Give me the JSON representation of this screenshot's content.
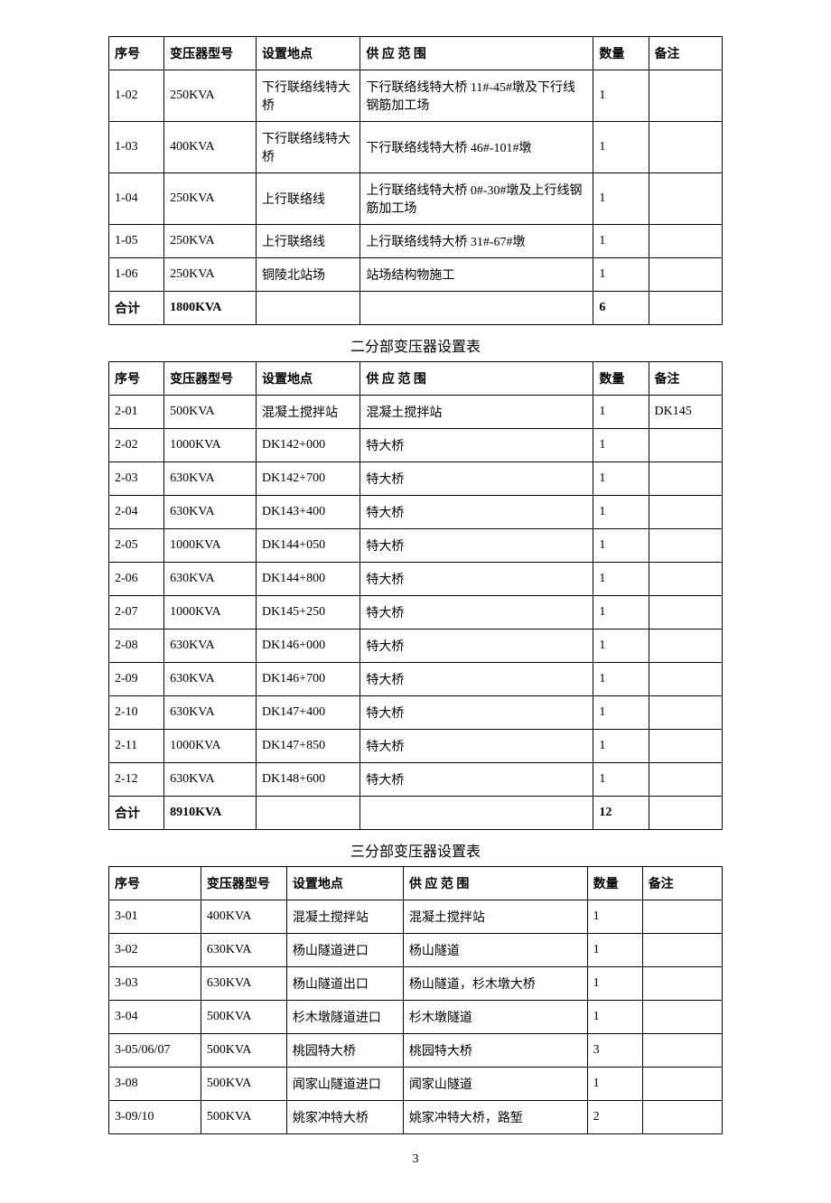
{
  "headers": {
    "seq": "序号",
    "model": "变压器型号",
    "location": "设置地点",
    "scope": "供 应 范 围",
    "qty": "数量",
    "remark": "备注"
  },
  "table1": {
    "rows": [
      {
        "seq": "1-02",
        "model": "250KVA",
        "location": "下行联络线特大桥",
        "scope": "下行联络线特大桥 11#-45#墩及下行线钢筋加工场",
        "qty": "1",
        "remark": ""
      },
      {
        "seq": "1-03",
        "model": "400KVA",
        "location": "下行联络线特大桥",
        "scope": "下行联络线特大桥 46#-101#墩",
        "qty": "1",
        "remark": ""
      },
      {
        "seq": "1-04",
        "model": "250KVA",
        "location": "上行联络线",
        "scope": "上行联络线特大桥 0#-30#墩及上行线钢筋加工场",
        "qty": "1",
        "remark": ""
      },
      {
        "seq": "1-05",
        "model": "250KVA",
        "location": "上行联络线",
        "scope": "上行联络线特大桥 31#-67#墩",
        "qty": "1",
        "remark": ""
      },
      {
        "seq": "1-06",
        "model": "250KVA",
        "location": "铜陵北站场",
        "scope": "站场结构物施工",
        "qty": "1",
        "remark": ""
      }
    ],
    "total": {
      "seq": "合计",
      "model": "1800KVA",
      "location": "",
      "scope": "",
      "qty": "6",
      "remark": ""
    }
  },
  "table2": {
    "title": "二分部变压器设置表",
    "rows": [
      {
        "seq": "2-01",
        "model": "500KVA",
        "location": "混凝土搅拌站",
        "scope": "混凝土搅拌站",
        "qty": "1",
        "remark": "DK145"
      },
      {
        "seq": "2-02",
        "model": "1000KVA",
        "location": "DK142+000",
        "scope": "特大桥",
        "qty": "1",
        "remark": ""
      },
      {
        "seq": "2-03",
        "model": "630KVA",
        "location": "DK142+700",
        "scope": "特大桥",
        "qty": "1",
        "remark": ""
      },
      {
        "seq": "2-04",
        "model": "630KVA",
        "location": "DK143+400",
        "scope": "特大桥",
        "qty": "1",
        "remark": ""
      },
      {
        "seq": "2-05",
        "model": "1000KVA",
        "location": "DK144+050",
        "scope": "特大桥",
        "qty": "1",
        "remark": ""
      },
      {
        "seq": "2-06",
        "model": "630KVA",
        "location": "DK144+800",
        "scope": "特大桥",
        "qty": "1",
        "remark": ""
      },
      {
        "seq": "2-07",
        "model": "1000KVA",
        "location": "DK145+250",
        "scope": "特大桥",
        "qty": "1",
        "remark": ""
      },
      {
        "seq": "2-08",
        "model": "630KVA",
        "location": "DK146+000",
        "scope": "特大桥",
        "qty": "1",
        "remark": ""
      },
      {
        "seq": "2-09",
        "model": "630KVA",
        "location": "DK146+700",
        "scope": "特大桥",
        "qty": "1",
        "remark": ""
      },
      {
        "seq": "2-10",
        "model": "630KVA",
        "location": "DK147+400",
        "scope": "特大桥",
        "qty": "1",
        "remark": ""
      },
      {
        "seq": "2-11",
        "model": "1000KVA",
        "location": "DK147+850",
        "scope": "特大桥",
        "qty": "1",
        "remark": ""
      },
      {
        "seq": "2-12",
        "model": "630KVA",
        "location": "DK148+600",
        "scope": "特大桥",
        "qty": "1",
        "remark": ""
      }
    ],
    "total": {
      "seq": "合计",
      "model": "8910KVA",
      "location": "",
      "scope": "",
      "qty": "12",
      "remark": ""
    }
  },
  "table3": {
    "title": "三分部变压器设置表",
    "rows": [
      {
        "seq": "3-01",
        "model": "400KVA",
        "location": "混凝土搅拌站",
        "scope": "混凝土搅拌站",
        "qty": "1",
        "remark": ""
      },
      {
        "seq": "3-02",
        "model": "630KVA",
        "location": "杨山隧道进口",
        "scope": "杨山隧道",
        "qty": "1",
        "remark": ""
      },
      {
        "seq": "3-03",
        "model": "630KVA",
        "location": "杨山隧道出口",
        "scope": "杨山隧道，杉木墩大桥",
        "qty": "1",
        "remark": ""
      },
      {
        "seq": "3-04",
        "model": "500KVA",
        "location": "杉木墩隧道进口",
        "scope": "杉木墩隧道",
        "qty": "1",
        "remark": ""
      },
      {
        "seq": "3-05/06/07",
        "model": "500KVA",
        "location": "桃园特大桥",
        "scope": "桃园特大桥",
        "qty": "3",
        "remark": ""
      },
      {
        "seq": "3-08",
        "model": "500KVA",
        "location": "闻家山隧道进口",
        "scope": "闻家山隧道",
        "qty": "1",
        "remark": ""
      },
      {
        "seq": "3-09/10",
        "model": "500KVA",
        "location": "姚家冲特大桥",
        "scope": "姚家冲特大桥，路堑",
        "qty": "2",
        "remark": ""
      }
    ]
  },
  "page_number": "3"
}
